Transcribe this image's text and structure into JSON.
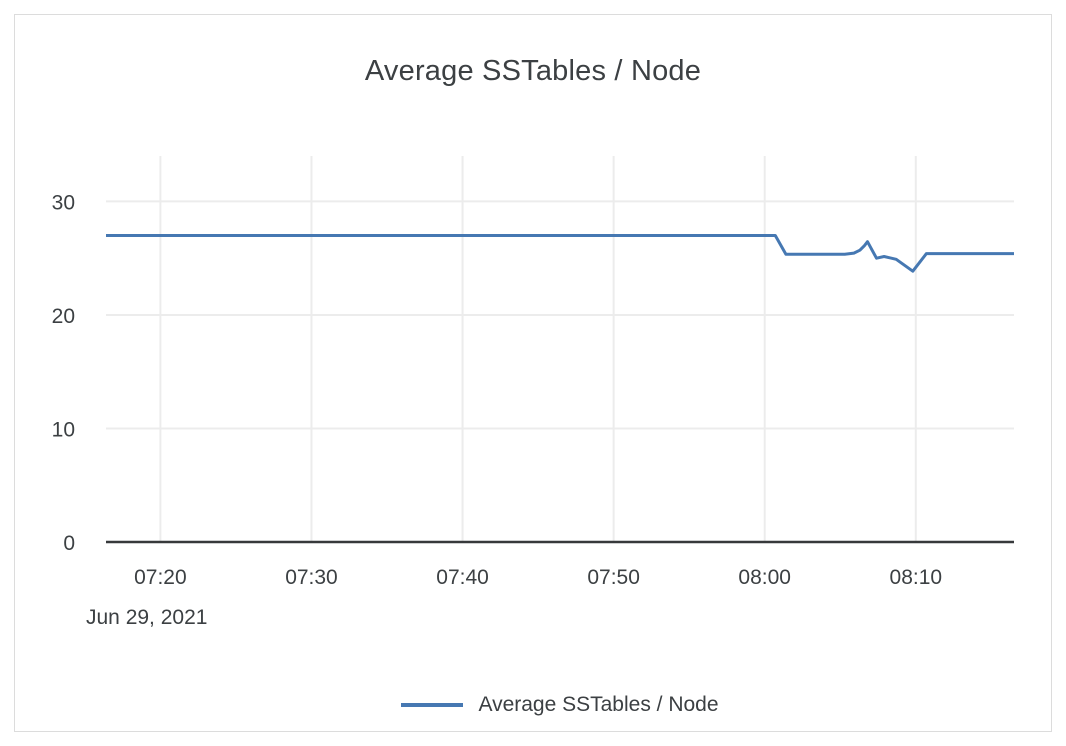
{
  "chart_data": {
    "type": "line",
    "title": "Average SSTables / Node",
    "date_label": "Jun 29, 2021",
    "x_unit": "minutes_since_07:00",
    "x_range": [
      16.4,
      76.5
    ],
    "x_ticks": [
      {
        "t": 20,
        "label": "07:20"
      },
      {
        "t": 30,
        "label": "07:30"
      },
      {
        "t": 40,
        "label": "07:40"
      },
      {
        "t": 50,
        "label": "07:50"
      },
      {
        "t": 60,
        "label": "08:00"
      },
      {
        "t": 70,
        "label": "08:10"
      }
    ],
    "y_ticks": [
      0,
      10,
      20,
      30
    ],
    "ylim": [
      0,
      34
    ],
    "grid": true,
    "legend_position": "bottom",
    "series": [
      {
        "name": "Average SSTables / Node",
        "color": "#4678b2",
        "points": [
          [
            16.4,
            27.0
          ],
          [
            60.7,
            27.0
          ],
          [
            61.4,
            25.35
          ],
          [
            65.3,
            25.35
          ],
          [
            65.9,
            25.45
          ],
          [
            66.3,
            25.7
          ],
          [
            66.6,
            26.1
          ],
          [
            66.8,
            26.45
          ],
          [
            67.4,
            25.0
          ],
          [
            67.9,
            25.15
          ],
          [
            68.7,
            24.9
          ],
          [
            69.8,
            23.85
          ],
          [
            70.7,
            25.4
          ],
          [
            76.5,
            25.4
          ]
        ]
      }
    ]
  },
  "colors": {
    "line": "#4678b2",
    "text": "#3c4043",
    "grid": "#ececec",
    "axis": "#37393b",
    "card_border": "#dcdcdc",
    "background": "#ffffff"
  }
}
